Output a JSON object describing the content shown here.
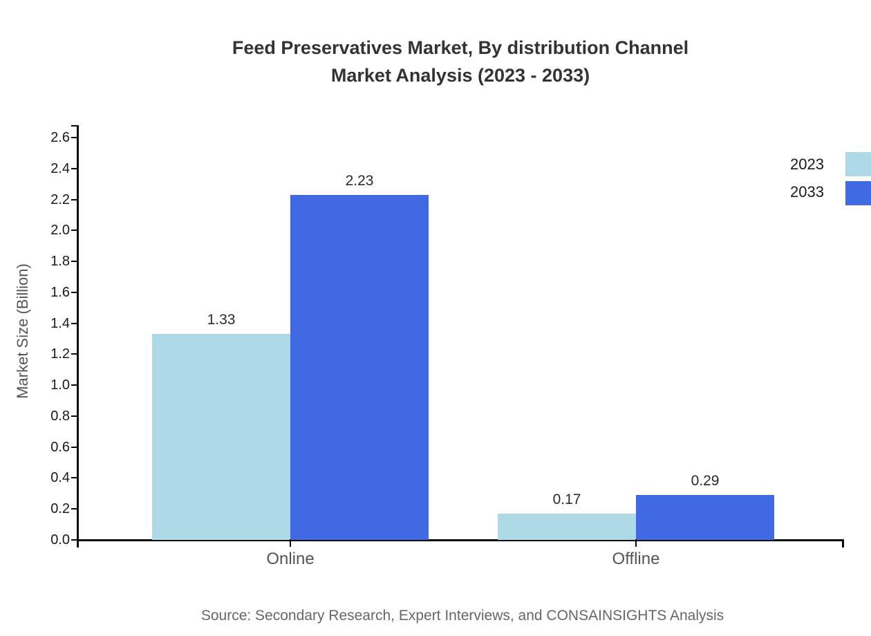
{
  "title": {
    "line1": "Feed Preservatives Market, By distribution Channel",
    "line2": "Market Analysis (2023 - 2033)"
  },
  "source": "Source: Secondary Research, Expert Interviews, and CONSAINSIGHTS Analysis",
  "chart_data": {
    "type": "bar",
    "categories": [
      "Online",
      "Offline"
    ],
    "series": [
      {
        "name": "2023",
        "color": "#ADD8E6",
        "values": [
          1.33,
          0.17
        ]
      },
      {
        "name": "2033",
        "color": "#4169E1",
        "values": [
          2.23,
          0.29
        ]
      }
    ],
    "title": "Feed Preservatives Market, By distribution Channel Market Analysis (2023 - 2033)",
    "xlabel": "",
    "ylabel": "Market Size (Billion)",
    "ylim": [
      0,
      2.6
    ],
    "ytick_step": 0.2,
    "grid": false,
    "legend_position": "right",
    "value_label_format": "0.00"
  }
}
